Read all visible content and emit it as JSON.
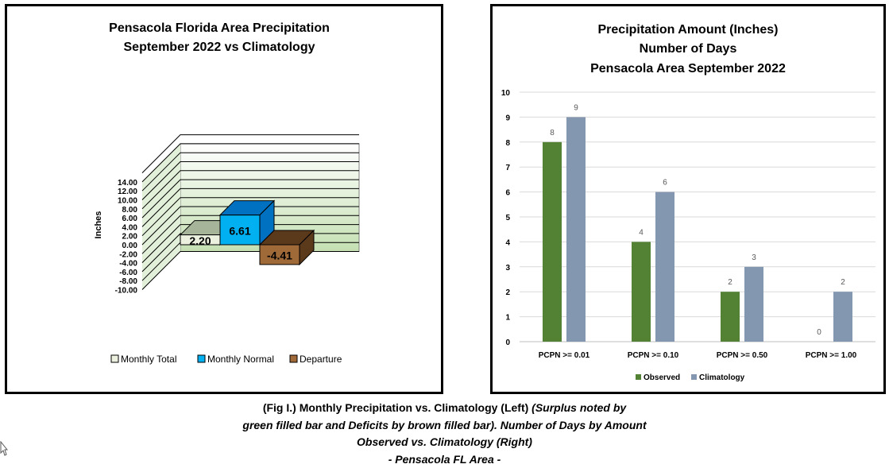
{
  "left_chart": {
    "title_lines": [
      "Pensacola Florida Area Precipitation",
      "September 2022 vs Climatology"
    ],
    "ylabel": "Inches",
    "colors": {
      "total_front": "#ebf1de",
      "total_top": "#a6b59a",
      "normal_front": "#00b0f0",
      "normal_top": "#0070c0",
      "departure_front": "#a06a38",
      "departure_side": "#5b3a1b"
    }
  },
  "right_chart": {
    "title_lines": [
      "Precipitation Amount (Inches)",
      "Number of Days",
      "Pensacola Area September 2022"
    ],
    "colors": {
      "observed": "#548235",
      "climatology": "#8497b0"
    }
  },
  "chart_data": [
    {
      "type": "bar",
      "title": "Pensacola Florida Area Precipitation September 2022 vs Climatology",
      "ylabel": "Inches",
      "ylim": [
        -10,
        14
      ],
      "yticks": [
        "14.00",
        "12.00",
        "10.00",
        "8.00",
        "6.00",
        "4.00",
        "2.00",
        "0.00",
        "-2.00",
        "-4.00",
        "-6.00",
        "-8.00",
        "-10.00"
      ],
      "categories": [
        "Monthly Total",
        "Monthly Normal",
        "Departure"
      ],
      "values": [
        2.2,
        6.61,
        -4.41
      ],
      "value_labels": [
        "2.20",
        "6.61",
        "-4.41"
      ],
      "legend": [
        "Monthly Total",
        "Monthly Normal",
        "Departure"
      ],
      "legend_position": "bottom",
      "grid": true
    },
    {
      "type": "bar",
      "title": "Precipitation Amount (Inches) Number of Days Pensacola Area September 2022",
      "ylim": [
        0,
        10
      ],
      "yticks": [
        "10",
        "9",
        "8",
        "7",
        "6",
        "5",
        "4",
        "3",
        "2",
        "1",
        "0"
      ],
      "categories": [
        "PCPN >= 0.01",
        "PCPN >= 0.10",
        "PCPN >= 0.50",
        "PCPN >= 1.00"
      ],
      "series": [
        {
          "name": "Observed",
          "values": [
            8,
            4,
            2,
            0
          ]
        },
        {
          "name": "Climatology",
          "values": [
            9,
            6,
            3,
            2
          ]
        }
      ],
      "legend_position": "bottom",
      "grid": true
    }
  ],
  "caption": {
    "line1_plain": "(Fig I.) Monthly Precipitation vs. Climatology (Left) ",
    "line1_italic": "(Surplus noted by",
    "line2": "green filled bar and Deficits by brown filled bar). Number of Days by Amount",
    "line3": "Observed vs. Climatology (Right)",
    "line4": "- Pensacola FL Area -"
  }
}
